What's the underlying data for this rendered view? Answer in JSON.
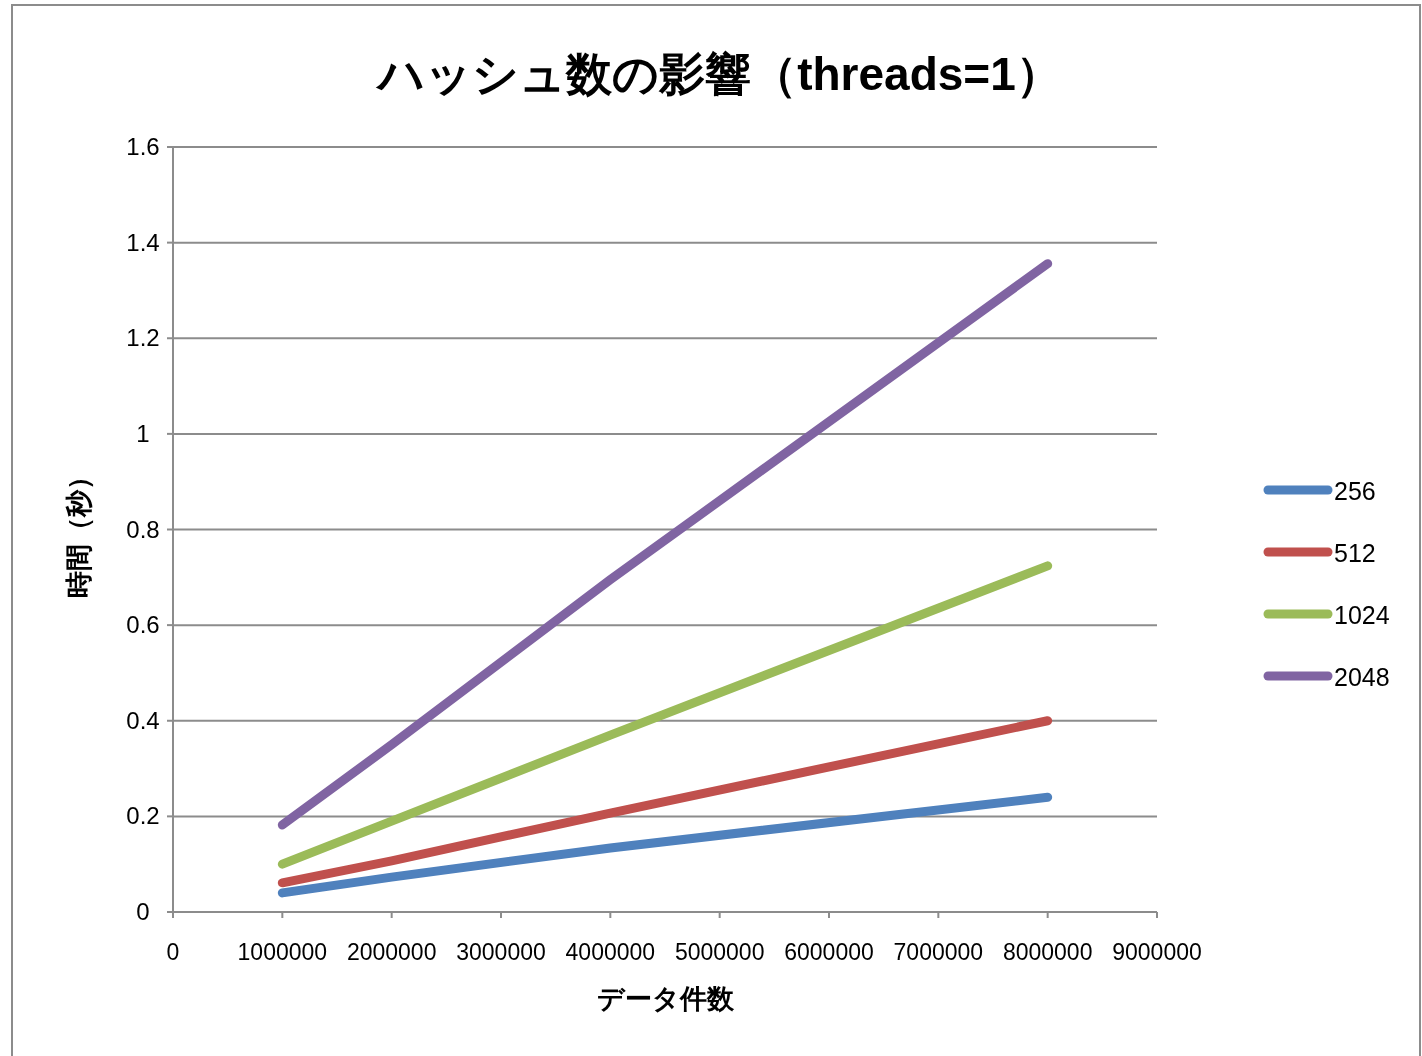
{
  "chart_data": {
    "type": "line",
    "title": "ハッシュ数の影響（threads=1）",
    "xlabel": "データ件数",
    "ylabel": "時間（秒）",
    "x": [
      1000000,
      2000000,
      4000000,
      8000000
    ],
    "series": [
      {
        "name": "256",
        "color": "#4f81bd",
        "values": [
          0.04,
          0.073,
          0.134,
          0.24
        ]
      },
      {
        "name": "512",
        "color": "#c0504d",
        "values": [
          0.061,
          0.107,
          0.207,
          0.4
        ]
      },
      {
        "name": "1024",
        "color": "#9bbb59",
        "values": [
          0.1,
          0.19,
          0.37,
          0.724
        ]
      },
      {
        "name": "2048",
        "color": "#8064a2",
        "values": [
          0.182,
          0.35,
          0.695,
          1.356
        ]
      }
    ],
    "xlim": [
      0,
      9000000
    ],
    "xticks": [
      0,
      1000000,
      2000000,
      3000000,
      4000000,
      5000000,
      6000000,
      7000000,
      8000000,
      9000000
    ],
    "ylim": [
      0,
      1.6
    ],
    "yticks": [
      0,
      0.2,
      0.4,
      0.6,
      0.8,
      1,
      1.2,
      1.4,
      1.6
    ],
    "grid": "y",
    "legend": "right"
  }
}
